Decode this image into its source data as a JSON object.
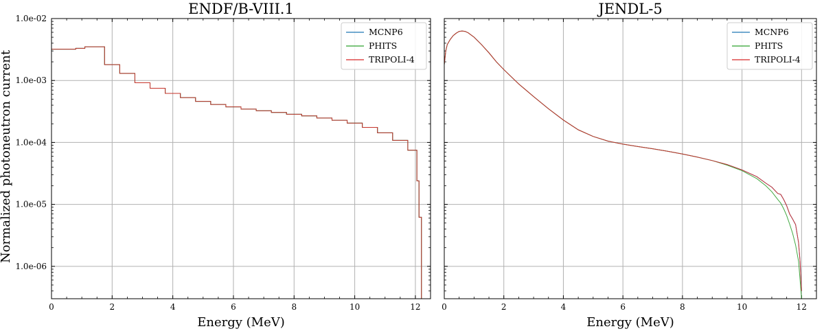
{
  "figure": {
    "shared_ylabel": "Normalized photoneutron current",
    "legend_location": "top-right"
  },
  "colors": {
    "mcnp6": "#1f77b4",
    "phits": "#2ca02c",
    "tripoli4": "#d62728",
    "grid": "#b0b0b0"
  },
  "chart_data": [
    {
      "type": "line",
      "title": "ENDF/B-VIII.1",
      "xlabel": "Energy (MeV)",
      "ylabel": "Normalized photoneutron current",
      "xlim": [
        0,
        12.5
      ],
      "ylim": [
        3e-07,
        0.01
      ],
      "yscale": "log",
      "grid": true,
      "xticks": [
        "0",
        "2",
        "4",
        "6",
        "8",
        "10",
        "12"
      ],
      "yticks": [
        "1.0e-02",
        "1.0e-03",
        "1.0e-04",
        "1.0e-05",
        "1.0e-06"
      ],
      "legend": [
        "MCNP6",
        "PHITS",
        "TRIPOLI-4"
      ],
      "series": [
        {
          "name": "MCNP6",
          "style": "step",
          "x": [
            0,
            0.8,
            1.1,
            1.75,
            2.25,
            2.75,
            3.25,
            3.75,
            4.25,
            4.75,
            5.25,
            5.75,
            6.25,
            6.75,
            7.25,
            7.75,
            8.25,
            8.75,
            9.25,
            9.75,
            10.25,
            10.75,
            11.25,
            11.75,
            12.05,
            12.12,
            12.2
          ],
          "y": [
            0.0032,
            0.0033,
            0.0035,
            0.0018,
            0.0013,
            0.00092,
            0.00075,
            0.00062,
            0.00053,
            0.00046,
            0.00041,
            0.000375,
            0.000345,
            0.000325,
            0.000305,
            0.000285,
            0.000268,
            0.000248,
            0.000228,
            0.000205,
            0.000175,
            0.000143,
            0.000108,
            7.5e-05,
            2.4e-05,
            6.2e-06,
            3e-07
          ]
        },
        {
          "name": "PHITS",
          "style": "step",
          "x": [
            0,
            0.8,
            1.1,
            1.75,
            2.25,
            2.75,
            3.25,
            3.75,
            4.25,
            4.75,
            5.25,
            5.75,
            6.25,
            6.75,
            7.25,
            7.75,
            8.25,
            8.75,
            9.25,
            9.75,
            10.25,
            10.75,
            11.25,
            11.75,
            12.05,
            12.12,
            12.2
          ],
          "y": [
            0.0032,
            0.0033,
            0.0035,
            0.0018,
            0.0013,
            0.00092,
            0.00075,
            0.00062,
            0.00053,
            0.00046,
            0.00041,
            0.000375,
            0.000345,
            0.000325,
            0.000305,
            0.000285,
            0.000268,
            0.000248,
            0.000228,
            0.000205,
            0.000175,
            0.000143,
            0.000108,
            7.5e-05,
            2.4e-05,
            6.2e-06,
            3e-07
          ]
        },
        {
          "name": "TRIPOLI-4",
          "style": "step",
          "x": [
            0,
            0.8,
            1.1,
            1.75,
            2.25,
            2.75,
            3.25,
            3.75,
            4.25,
            4.75,
            5.25,
            5.75,
            6.25,
            6.75,
            7.25,
            7.75,
            8.25,
            8.75,
            9.25,
            9.75,
            10.25,
            10.75,
            11.25,
            11.75,
            12.05,
            12.12,
            12.2
          ],
          "y": [
            0.0032,
            0.0033,
            0.0035,
            0.0018,
            0.0013,
            0.00092,
            0.00075,
            0.00062,
            0.00053,
            0.00046,
            0.00041,
            0.000375,
            0.000345,
            0.000325,
            0.000305,
            0.000285,
            0.000268,
            0.000248,
            0.000228,
            0.000205,
            0.000175,
            0.000143,
            0.000108,
            7.5e-05,
            2.4e-05,
            6.2e-06,
            3e-07
          ]
        }
      ]
    },
    {
      "type": "line",
      "title": "JENDL-5",
      "xlabel": "Energy (MeV)",
      "ylabel": "",
      "xlim": [
        0,
        12.5
      ],
      "ylim": [
        3e-07,
        0.01
      ],
      "yscale": "log",
      "grid": true,
      "xticks": [
        "0",
        "2",
        "4",
        "6",
        "8",
        "10",
        "12"
      ],
      "yticks": [],
      "legend": [
        "MCNP6",
        "PHITS",
        "TRIPOLI-4"
      ],
      "series": [
        {
          "name": "MCNP6",
          "style": "line",
          "x": [
            0.0,
            0.05,
            0.1,
            0.2,
            0.3,
            0.4,
            0.5,
            0.6,
            0.7,
            0.8,
            1.0,
            1.25,
            1.5,
            1.75,
            2.0,
            2.5,
            3.0,
            3.5,
            4.0,
            4.5,
            5.0,
            5.5,
            6.0,
            6.5,
            7.0,
            7.5,
            8.0,
            8.5,
            9.0,
            9.5,
            10.0,
            10.5,
            10.8,
            11.0,
            11.2,
            11.3,
            11.4,
            11.5,
            11.6,
            11.7,
            11.8,
            11.9,
            11.95,
            12.0
          ],
          "y": [
            0.0018,
            0.003,
            0.0038,
            0.0046,
            0.0053,
            0.0058,
            0.0062,
            0.0063,
            0.0062,
            0.0059,
            0.005,
            0.0038,
            0.0028,
            0.002,
            0.0015,
            0.00088,
            0.00055,
            0.00035,
            0.00023,
            0.00016,
            0.000125,
            0.000105,
            9.4e-05,
            8.6e-05,
            7.9e-05,
            7.2e-05,
            6.5e-05,
            5.8e-05,
            5.1e-05,
            4.4e-05,
            3.6e-05,
            2.8e-05,
            2.2e-05,
            1.9e-05,
            1.5e-05,
            1.45e-05,
            1.2e-05,
            9.5e-06,
            7e-06,
            5.8e-06,
            4.7e-06,
            2.4e-06,
            1.2e-06,
            4e-07
          ]
        },
        {
          "name": "PHITS",
          "style": "line",
          "x": [
            0.0,
            0.05,
            0.1,
            0.2,
            0.3,
            0.4,
            0.5,
            0.6,
            0.7,
            0.8,
            1.0,
            1.25,
            1.5,
            1.75,
            2.0,
            2.5,
            3.0,
            3.5,
            4.0,
            4.5,
            5.0,
            5.5,
            6.0,
            6.5,
            7.0,
            7.5,
            8.0,
            8.5,
            9.0,
            9.5,
            10.0,
            10.5,
            10.8,
            11.0,
            11.2,
            11.3,
            11.4,
            11.5,
            11.6,
            11.7,
            11.8,
            11.9,
            11.95,
            12.0
          ],
          "y": [
            0.0018,
            0.003,
            0.0038,
            0.0046,
            0.0053,
            0.0058,
            0.0062,
            0.0063,
            0.0062,
            0.0059,
            0.005,
            0.0038,
            0.0028,
            0.002,
            0.0015,
            0.00088,
            0.00055,
            0.00035,
            0.00023,
            0.00016,
            0.000125,
            0.000105,
            9.4e-05,
            8.6e-05,
            7.9e-05,
            7.2e-05,
            6.5e-05,
            5.8e-05,
            5.1e-05,
            4.3e-05,
            3.5e-05,
            2.6e-05,
            2e-05,
            1.6e-05,
            1.2e-05,
            1.05e-05,
            8.5e-06,
            6.6e-06,
            4.8e-06,
            3.4e-06,
            2.2e-06,
            1.2e-06,
            6e-07,
            3e-07
          ]
        },
        {
          "name": "TRIPOLI-4",
          "style": "line",
          "x": [
            0.0,
            0.05,
            0.1,
            0.2,
            0.3,
            0.4,
            0.5,
            0.6,
            0.7,
            0.8,
            1.0,
            1.25,
            1.5,
            1.75,
            2.0,
            2.5,
            3.0,
            3.5,
            4.0,
            4.5,
            5.0,
            5.5,
            6.0,
            6.5,
            7.0,
            7.5,
            8.0,
            8.5,
            9.0,
            9.5,
            10.0,
            10.5,
            10.8,
            11.0,
            11.2,
            11.3,
            11.4,
            11.5,
            11.6,
            11.7,
            11.8,
            11.9,
            11.95,
            12.0
          ],
          "y": [
            0.0018,
            0.003,
            0.0038,
            0.0046,
            0.0053,
            0.0058,
            0.0062,
            0.0063,
            0.0062,
            0.0059,
            0.005,
            0.0038,
            0.0028,
            0.002,
            0.0015,
            0.00088,
            0.00055,
            0.00035,
            0.00023,
            0.00016,
            0.000125,
            0.000105,
            9.4e-05,
            8.6e-05,
            7.9e-05,
            7.2e-05,
            6.5e-05,
            5.8e-05,
            5.1e-05,
            4.4e-05,
            3.6e-05,
            2.8e-05,
            2.2e-05,
            1.9e-05,
            1.5e-05,
            1.45e-05,
            1.2e-05,
            9.5e-06,
            7e-06,
            5.8e-06,
            4.7e-06,
            2.4e-06,
            1.2e-06,
            4e-07
          ]
        }
      ]
    }
  ]
}
